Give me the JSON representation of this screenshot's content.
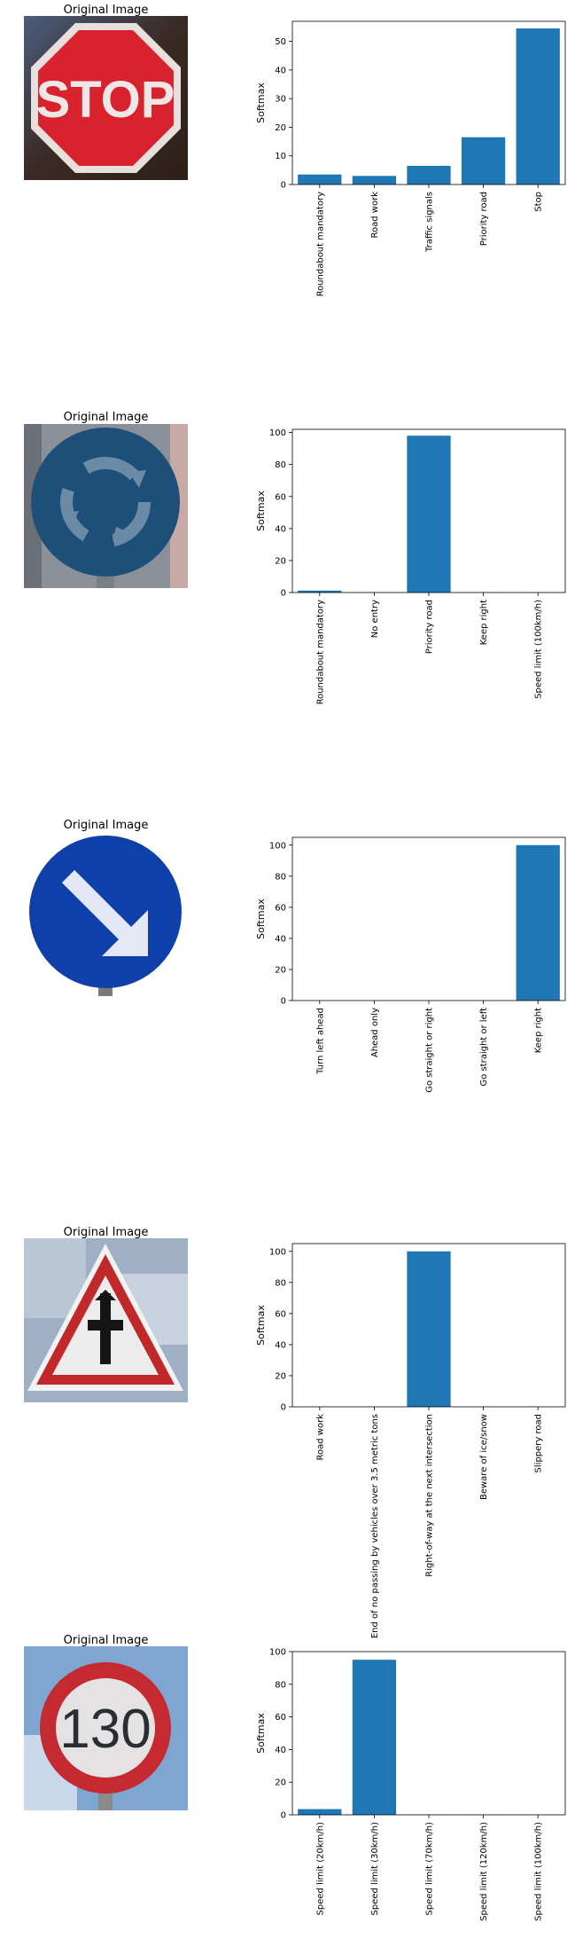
{
  "image_title": "Original Image",
  "bar_color": "#1f77b4",
  "chart_data": [
    {
      "type": "bar",
      "sign_icon": "stop-sign-icon",
      "ylabel": "Softmax",
      "ylim": [
        0,
        57
      ],
      "yticks": [
        0,
        10,
        20,
        30,
        40,
        50
      ],
      "categories": [
        "Roundabout mandatory",
        "Road work",
        "Traffic signals",
        "Priority road",
        "Stop"
      ],
      "values": [
        3.5,
        3,
        6.5,
        16.5,
        54.5
      ]
    },
    {
      "type": "bar",
      "sign_icon": "roundabout-sign-icon",
      "ylabel": "Softmax",
      "ylim": [
        0,
        102
      ],
      "yticks": [
        0,
        20,
        40,
        60,
        80,
        100
      ],
      "categories": [
        "Roundabout mandatory",
        "No entry",
        "Priority road",
        "Keep right",
        "Speed limit (100km/h)"
      ],
      "values": [
        1.2,
        0.1,
        98,
        0.1,
        0.1
      ]
    },
    {
      "type": "bar",
      "sign_icon": "keep-right-sign-icon",
      "ylabel": "Softmax",
      "ylim": [
        0,
        105
      ],
      "yticks": [
        0,
        20,
        40,
        60,
        80,
        100
      ],
      "categories": [
        "Turn left ahead",
        "Ahead only",
        "Go straight or right",
        "Go straight or left",
        "Keep right"
      ],
      "values": [
        0,
        0,
        0,
        0,
        100
      ]
    },
    {
      "type": "bar",
      "sign_icon": "right-of-way-sign-icon",
      "ylabel": "Softmax",
      "ylim": [
        0,
        105
      ],
      "yticks": [
        0,
        20,
        40,
        60,
        80,
        100
      ],
      "categories": [
        "Road work",
        "End of no passing by vehicles over 3.5 metric tons",
        "Right-of-way at the next intersection",
        "Beware of ice/snow",
        "Slippery road"
      ],
      "values": [
        0,
        0,
        100,
        0,
        0
      ]
    },
    {
      "type": "bar",
      "sign_icon": "speed-limit-130-sign-icon",
      "sign_text": "130",
      "ylabel": "Softmax",
      "ylim": [
        0,
        100
      ],
      "yticks": [
        0,
        20,
        40,
        60,
        80,
        100
      ],
      "categories": [
        "Speed limit (20km/h)",
        "Speed limit (30km/h)",
        "Speed limit (70km/h)",
        "Speed limit (120km/h)",
        "Speed limit (100km/h)"
      ],
      "values": [
        3.5,
        95,
        0.1,
        0.1,
        0.1
      ]
    }
  ]
}
